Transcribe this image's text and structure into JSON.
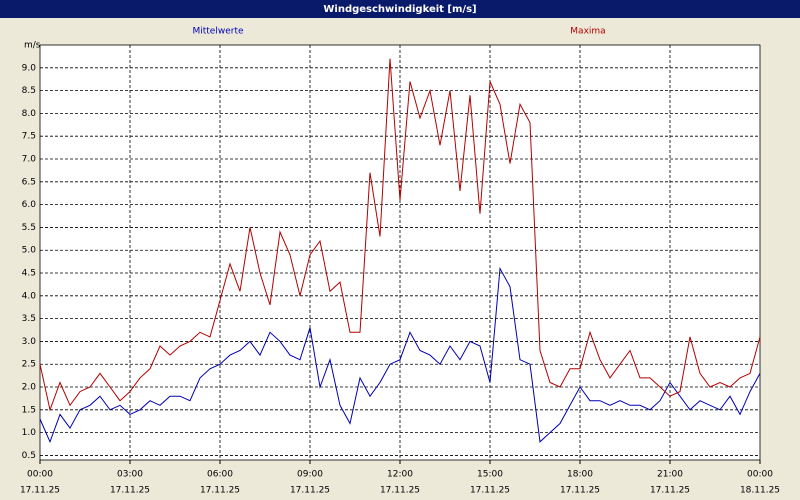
{
  "chart_data": {
    "type": "line",
    "title": "Windgeschwindigkeit [m/s]",
    "y_unit": "m/s",
    "grid": true,
    "x": [
      0,
      20,
      40,
      60,
      80,
      100,
      120,
      140,
      160,
      180,
      200,
      220,
      240,
      260,
      280,
      300,
      320,
      340,
      360,
      380,
      400,
      420,
      440,
      460,
      480,
      500,
      520,
      540,
      560,
      580,
      600,
      620,
      640,
      660,
      680,
      700,
      720,
      740,
      760,
      780,
      800,
      820,
      840,
      860,
      880,
      900,
      920,
      940,
      960,
      980,
      1000,
      1020,
      1040,
      1060,
      1080,
      1100,
      1120,
      1140,
      1160,
      1180,
      1200,
      1220,
      1240,
      1260,
      1280,
      1300,
      1320,
      1340,
      1360,
      1380,
      1400,
      1420,
      1440
    ],
    "series": [
      {
        "name": "Mittelwerte",
        "color": "#0000b4",
        "values": [
          1.3,
          0.8,
          1.4,
          1.1,
          1.5,
          1.6,
          1.8,
          1.5,
          1.6,
          1.4,
          1.5,
          1.7,
          1.6,
          1.8,
          1.8,
          1.7,
          2.2,
          2.4,
          2.5,
          2.7,
          2.8,
          3.0,
          2.7,
          3.2,
          3.0,
          2.7,
          2.6,
          3.3,
          2.0,
          2.6,
          1.6,
          1.2,
          2.2,
          1.8,
          2.1,
          2.5,
          2.6,
          3.2,
          2.8,
          2.7,
          2.5,
          2.9,
          2.6,
          3.0,
          2.9,
          2.1,
          4.6,
          4.2,
          2.6,
          2.5,
          0.8,
          1.0,
          1.2,
          1.6,
          2.0,
          1.7,
          1.7,
          1.6,
          1.7,
          1.6,
          1.6,
          1.5,
          1.7,
          2.1,
          1.8,
          1.5,
          1.7,
          1.6,
          1.5,
          1.8,
          1.4,
          1.9,
          2.3
        ]
      },
      {
        "name": "Maxima",
        "color": "#b40000",
        "values": [
          2.5,
          1.5,
          2.1,
          1.6,
          1.9,
          2.0,
          2.3,
          2.0,
          1.7,
          1.9,
          2.2,
          2.4,
          2.9,
          2.7,
          2.9,
          3.0,
          3.2,
          3.1,
          3.9,
          4.7,
          4.1,
          5.5,
          4.5,
          3.8,
          5.4,
          4.9,
          4.0,
          4.9,
          5.2,
          4.1,
          4.3,
          3.2,
          3.2,
          6.7,
          5.3,
          9.2,
          6.1,
          8.7,
          7.9,
          8.5,
          7.3,
          8.5,
          6.3,
          8.4,
          5.8,
          8.7,
          8.2,
          6.9,
          8.2,
          7.8,
          2.8,
          2.1,
          2.0,
          2.4,
          2.4,
          3.2,
          2.6,
          2.2,
          2.5,
          2.8,
          2.2,
          2.2,
          2.0,
          1.8,
          1.9,
          3.1,
          2.3,
          2.0,
          2.1,
          2.0,
          2.2,
          2.3,
          3.1
        ]
      }
    ],
    "xlim": [
      0,
      1440
    ],
    "xticks": [
      {
        "value": 0,
        "label": "00:00",
        "date": "17.11.25"
      },
      {
        "value": 180,
        "label": "03:00",
        "date": "17.11.25"
      },
      {
        "value": 360,
        "label": "06:00",
        "date": "17.11.25"
      },
      {
        "value": 540,
        "label": "09:00",
        "date": "17.11.25"
      },
      {
        "value": 720,
        "label": "12:00",
        "date": "17.11.25"
      },
      {
        "value": 900,
        "label": "15:00",
        "date": "17.11.25"
      },
      {
        "value": 1080,
        "label": "18:00",
        "date": "17.11.25"
      },
      {
        "value": 1260,
        "label": "21:00",
        "date": "17.11.25"
      },
      {
        "value": 1440,
        "label": "00:00",
        "date": "18.11.25"
      }
    ],
    "ylim": [
      0.4,
      9.5
    ],
    "yticks": [
      0.5,
      {
        "value": 1,
        "label": "1.0"
      },
      1.5,
      {
        "value": 2,
        "label": "2.0"
      },
      2.5,
      {
        "value": 3,
        "label": "3.0"
      },
      3.5,
      {
        "value": 4,
        "label": "4.0"
      },
      4.5,
      {
        "value": 5,
        "label": "5.0"
      },
      5.5,
      {
        "value": 6,
        "label": "6.0"
      },
      6.5,
      {
        "value": 7,
        "label": "7.0"
      },
      7.5,
      {
        "value": 8,
        "label": "8.0"
      },
      8.5,
      {
        "value": 9,
        "label": "9.0"
      }
    ]
  }
}
